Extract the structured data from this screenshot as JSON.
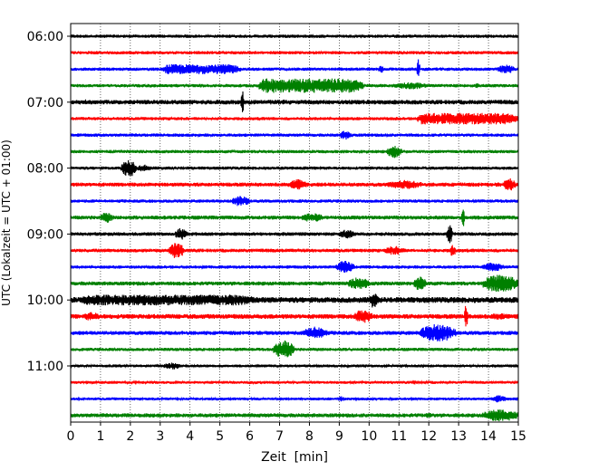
{
  "chart_data": {
    "type": "line",
    "title": "",
    "xlabel": "Zeit  [min]",
    "ylabel": "UTC (Lokalzeit = UTC + 01:00)",
    "xlim": [
      0,
      15
    ],
    "x_ticks": [
      "0",
      "1",
      "2",
      "3",
      "4",
      "5",
      "6",
      "7",
      "8",
      "9",
      "10",
      "11",
      "12",
      "13",
      "14",
      "15"
    ],
    "grid": "vertical dotted",
    "legend": "none",
    "row_start": "06:00",
    "row_interval_minutes": 15,
    "y_ticks": [
      {
        "label": "06:00",
        "row": 0
      },
      {
        "label": "07:00",
        "row": 4
      },
      {
        "label": "08:00",
        "row": 8
      },
      {
        "label": "09:00",
        "row": 12
      },
      {
        "label": "10:00",
        "row": 16
      },
      {
        "label": "11:00",
        "row": 20
      }
    ],
    "colors": [
      "#000000",
      "#ff0000",
      "#0000ff",
      "#008000"
    ],
    "series": [
      {
        "start": "06:00",
        "color": "#000000",
        "base_amp": 1.8,
        "events": [
          [
            3.4,
            0.3,
            1.5
          ],
          [
            8.2,
            0.3,
            1.5
          ]
        ]
      },
      {
        "start": "06:15",
        "color": "#ff0000",
        "base_amp": 1.8,
        "events": [
          [
            3.9,
            0.3,
            1.5
          ],
          [
            7.2,
            0.3,
            1.5
          ]
        ]
      },
      {
        "start": "06:30",
        "color": "#0000ff",
        "base_amp": 1.8,
        "events": [
          [
            3.1,
            2.6,
            5.5
          ],
          [
            10.3,
            0.2,
            4
          ],
          [
            11.6,
            0.1,
            12
          ],
          [
            14.3,
            0.6,
            5
          ]
        ]
      },
      {
        "start": "06:45",
        "color": "#008000",
        "base_amp": 1.8,
        "events": [
          [
            4.2,
            0.3,
            2
          ],
          [
            6.3,
            3.5,
            8
          ],
          [
            10.8,
            1.2,
            4
          ],
          [
            13.5,
            0.2,
            3
          ]
        ]
      },
      {
        "start": "07:00",
        "color": "#000000",
        "base_amp": 2.5,
        "events": [
          [
            5.7,
            0.1,
            14
          ],
          [
            0.4,
            0.2,
            3
          ],
          [
            6.5,
            1.0,
            3
          ]
        ]
      },
      {
        "start": "07:15",
        "color": "#ff0000",
        "base_amp": 1.8,
        "events": [
          [
            11.6,
            3.4,
            6.5
          ]
        ]
      },
      {
        "start": "07:30",
        "color": "#0000ff",
        "base_amp": 1.8,
        "events": [
          [
            9.0,
            0.4,
            5
          ]
        ]
      },
      {
        "start": "07:45",
        "color": "#008000",
        "base_amp": 1.8,
        "events": [
          [
            10.6,
            0.5,
            7
          ]
        ]
      },
      {
        "start": "08:00",
        "color": "#000000",
        "base_amp": 1.8,
        "events": [
          [
            1.7,
            0.5,
            10
          ],
          [
            2.2,
            0.5,
            4
          ]
        ]
      },
      {
        "start": "08:15",
        "color": "#ff0000",
        "base_amp": 2.2,
        "events": [
          [
            7.3,
            0.6,
            6
          ],
          [
            10.6,
            1.2,
            5
          ],
          [
            14.5,
            0.4,
            7
          ]
        ]
      },
      {
        "start": "08:30",
        "color": "#0000ff",
        "base_amp": 1.8,
        "events": [
          [
            5.4,
            0.6,
            6
          ]
        ]
      },
      {
        "start": "08:45",
        "color": "#008000",
        "base_amp": 2.2,
        "events": [
          [
            1.0,
            0.4,
            6
          ],
          [
            7.7,
            0.8,
            5
          ],
          [
            13.1,
            0.1,
            12
          ]
        ]
      },
      {
        "start": "09:00",
        "color": "#000000",
        "base_amp": 2.0,
        "events": [
          [
            3.5,
            0.4,
            7
          ],
          [
            9.0,
            0.5,
            5
          ],
          [
            12.6,
            0.2,
            10
          ]
        ]
      },
      {
        "start": "09:15",
        "color": "#ff0000",
        "base_amp": 2.0,
        "events": [
          [
            3.3,
            0.5,
            9
          ],
          [
            10.5,
            0.7,
            5
          ],
          [
            12.7,
            0.2,
            7
          ]
        ]
      },
      {
        "start": "09:30",
        "color": "#0000ff",
        "base_amp": 1.8,
        "events": [
          [
            8.9,
            0.6,
            7
          ],
          [
            13.8,
            0.7,
            5
          ]
        ]
      },
      {
        "start": "09:45",
        "color": "#008000",
        "base_amp": 2.2,
        "events": [
          [
            9.3,
            0.7,
            7
          ],
          [
            11.5,
            0.4,
            8
          ],
          [
            13.8,
            1.2,
            10
          ]
        ]
      },
      {
        "start": "10:00",
        "color": "#000000",
        "base_amp": 3.2,
        "events": [
          [
            0.3,
            6.0,
            6
          ],
          [
            10.0,
            0.3,
            9
          ]
        ]
      },
      {
        "start": "10:15",
        "color": "#ff0000",
        "base_amp": 2.6,
        "events": [
          [
            0.4,
            0.6,
            5
          ],
          [
            9.5,
            0.6,
            8
          ],
          [
            13.2,
            0.1,
            14
          ],
          [
            14.0,
            0.7,
            4
          ]
        ]
      },
      {
        "start": "10:30",
        "color": "#0000ff",
        "base_amp": 2.2,
        "events": [
          [
            7.8,
            0.8,
            7
          ],
          [
            11.7,
            1.2,
            10
          ]
        ]
      },
      {
        "start": "10:45",
        "color": "#008000",
        "base_amp": 1.8,
        "events": [
          [
            6.8,
            0.7,
            10
          ]
        ]
      },
      {
        "start": "11:00",
        "color": "#000000",
        "base_amp": 1.6,
        "events": [
          [
            3.1,
            0.6,
            4
          ]
        ]
      },
      {
        "start": "11:15",
        "color": "#ff0000",
        "base_amp": 1.6,
        "events": []
      },
      {
        "start": "11:30",
        "color": "#0000ff",
        "base_amp": 1.6,
        "events": [
          [
            8.9,
            0.3,
            3
          ],
          [
            14.1,
            0.5,
            4
          ]
        ]
      },
      {
        "start": "11:45",
        "color": "#008000",
        "base_amp": 2.2,
        "events": [
          [
            11.8,
            0.4,
            3
          ],
          [
            13.8,
            1.2,
            7
          ]
        ]
      }
    ]
  }
}
